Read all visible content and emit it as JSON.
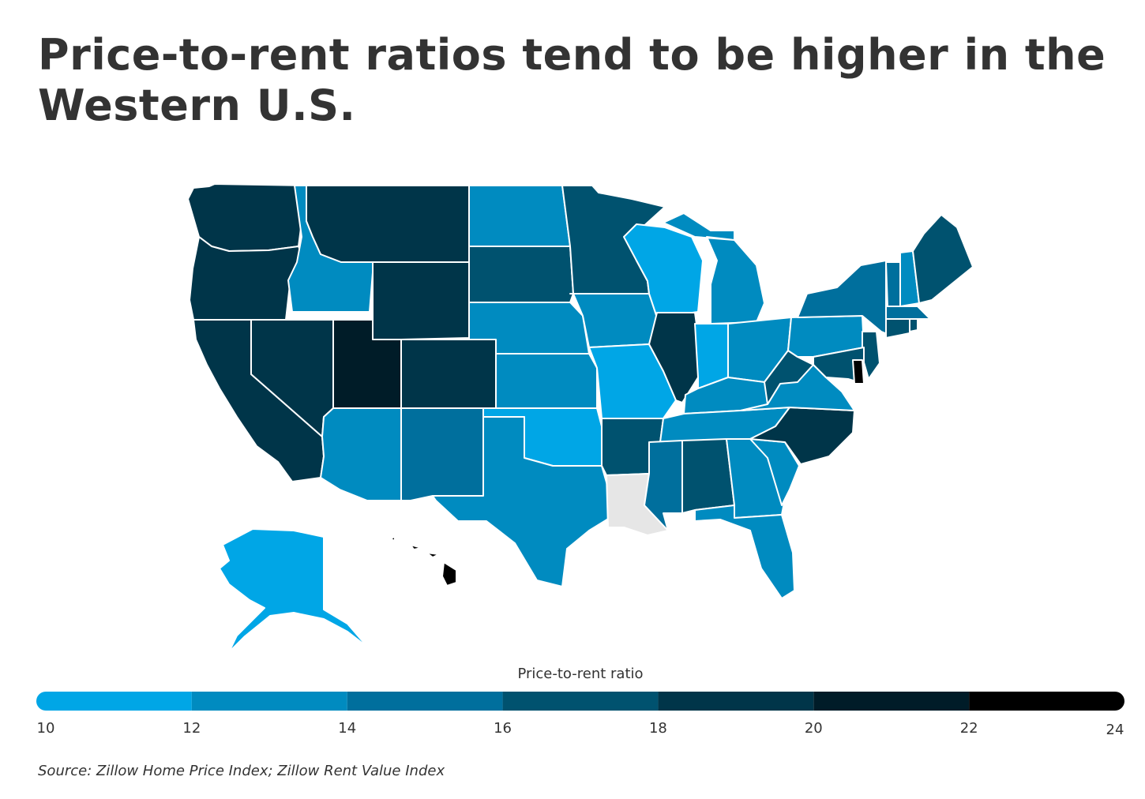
{
  "title": "Price-to-rent ratios tend to be higher in the Western U.S.",
  "legend": {
    "title": "Price-to-rent ratio",
    "ticks": [
      "10",
      "12",
      "14",
      "16",
      "18",
      "20",
      "22",
      "24"
    ],
    "bins": [
      {
        "min": 10,
        "max": 12,
        "color": "#00a6e6"
      },
      {
        "min": 12,
        "max": 14,
        "color": "#008bc0"
      },
      {
        "min": 14,
        "max": 16,
        "color": "#006f9d"
      },
      {
        "min": 16,
        "max": 18,
        "color": "#00526f"
      },
      {
        "min": 18,
        "max": 20,
        "color": "#003549"
      },
      {
        "min": 20,
        "max": 22,
        "color": "#001c28"
      },
      {
        "min": 22,
        "max": 24,
        "color": "#000000"
      }
    ],
    "no_data_color": "#e6e6e6"
  },
  "source": "Source: Zillow Home Price Index; Zillow Rent Value Index",
  "map_data": {
    "type": "choropleth",
    "region": "United States",
    "value_label": "Price-to-rent ratio",
    "bin_by_state": {
      "WA": "18-20",
      "OR": "18-20",
      "CA": "18-20",
      "NV": "18-20",
      "MT": "18-20",
      "WY": "18-20",
      "CO": "18-20",
      "IL": "18-20",
      "NC": "18-20",
      "UT": "20-22",
      "HI": "22-24",
      "DE": "22-24",
      "SD": "16-18",
      "MN": "16-18",
      "ME": "16-18",
      "AL": "16-18",
      "AR": "16-18",
      "WV": "16-18",
      "NJ": "16-18",
      "CT": "16-18",
      "RI": "16-18",
      "MD": "16-18",
      "NM": "14-16",
      "MS": "14-16",
      "NY": "14-16",
      "VT": "14-16",
      "MA": "14-16",
      "ID": "12-14",
      "AZ": "12-14",
      "ND": "12-14",
      "NE": "12-14",
      "KS": "12-14",
      "TX": "12-14",
      "IA": "12-14",
      "MI": "12-14",
      "OH": "12-14",
      "PA": "12-14",
      "KY": "12-14",
      "TN": "12-14",
      "VA": "12-14",
      "GA": "12-14",
      "SC": "12-14",
      "FL": "12-14",
      "NH": "12-14",
      "WI": "10-12",
      "MO": "10-12",
      "OK": "10-12",
      "IN": "10-12",
      "AK": "10-12",
      "LA": "no data"
    }
  }
}
